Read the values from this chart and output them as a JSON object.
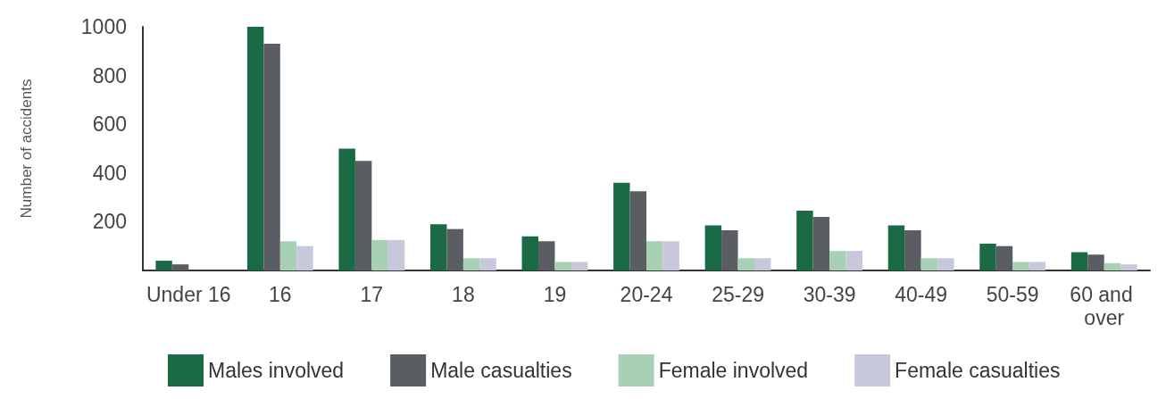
{
  "chart_data": {
    "type": "bar",
    "ylabel": "Number of accidents",
    "categories": [
      "Under 16",
      "16",
      "17",
      "18",
      "19",
      "20-24",
      "25-29",
      "30-39",
      "40-49",
      "50-59",
      "60 and over"
    ],
    "series": [
      {
        "name": "Males involved",
        "color": "#1a6b45",
        "values": [
          40,
          1000,
          500,
          190,
          140,
          360,
          185,
          245,
          185,
          110,
          75
        ]
      },
      {
        "name": "Male casualties",
        "color": "#5a5d62",
        "values": [
          25,
          930,
          450,
          170,
          120,
          325,
          165,
          220,
          165,
          100,
          65
        ]
      },
      {
        "name": "Female involved",
        "color": "#a8d0b4",
        "values": [
          0,
          120,
          125,
          50,
          35,
          120,
          50,
          80,
          50,
          35,
          30
        ]
      },
      {
        "name": "Female casualties",
        "color": "#c8c8dc",
        "values": [
          0,
          100,
          125,
          50,
          35,
          120,
          50,
          80,
          50,
          35,
          25
        ]
      }
    ],
    "ylim": [
      0,
      1000
    ],
    "yticks": [
      200,
      400,
      600,
      800,
      1000
    ],
    "grid": false,
    "legend": "bottom"
  }
}
